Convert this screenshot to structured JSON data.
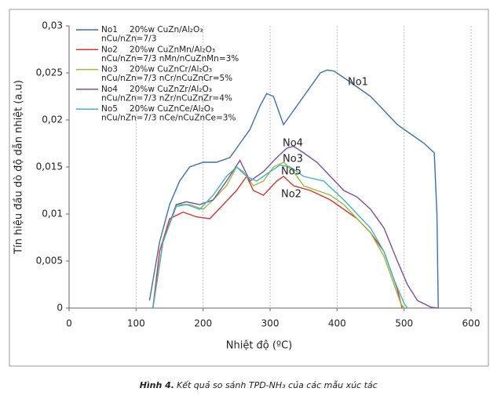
{
  "chart_data": {
    "type": "line",
    "ylabel": "Tín hiệu đầu dò độ dẫn nhiệt (a.u)",
    "xlabel": "Nhiệt độ   (ºC)",
    "figure_label": "Hình 4.",
    "caption": "Kết quả so sánh TPD-NH₃ của các mẫu xúc tác",
    "xlim": [
      0,
      600
    ],
    "xticks": [
      0,
      100,
      200,
      300,
      400,
      500,
      600
    ],
    "ylim": [
      0,
      0.03
    ],
    "yticks": [
      0,
      {
        "value": 0.005,
        "label": "0,005"
      },
      {
        "value": 0.01,
        "label": "0,01"
      },
      {
        "value": 0.015,
        "label": "0,015"
      },
      {
        "value": 0.02,
        "label": "0,02"
      },
      {
        "value": 0.025,
        "label": "0,025"
      },
      {
        "value": 0.03,
        "label": "0,03"
      }
    ],
    "grid": true,
    "legend": "upper left",
    "annotations": [
      "No1",
      "No4",
      "No3",
      "No5",
      "No2"
    ],
    "series": [
      {
        "name": "No1",
        "description": [
          "20%w CuZn/Al₂O₃",
          "nCu/nZn=7/3"
        ],
        "color": "#3c6fb0",
        "x": [
          120,
          135,
          150,
          165,
          180,
          200,
          220,
          240,
          255,
          270,
          285,
          295,
          305,
          315,
          320,
          330,
          345,
          360,
          375,
          385,
          395,
          410,
          430,
          450,
          470,
          490,
          510,
          530,
          545,
          549,
          551
        ],
        "values": [
          0.0008,
          0.007,
          0.011,
          0.0135,
          0.015,
          0.0155,
          0.0155,
          0.016,
          0.0175,
          0.019,
          0.0215,
          0.0228,
          0.0225,
          0.0205,
          0.0195,
          0.0205,
          0.022,
          0.0235,
          0.025,
          0.0253,
          0.0252,
          0.0245,
          0.0235,
          0.0225,
          0.021,
          0.0195,
          0.0185,
          0.0175,
          0.0165,
          0.01,
          0
        ]
      },
      {
        "name": "No2",
        "description": [
          "20%w CuZnMn/Al₂O₃",
          "nCu/nZn=7/3 nMn/nCuZnMn=3%"
        ],
        "color": "#d9342b",
        "x": [
          125,
          135,
          150,
          170,
          190,
          210,
          230,
          250,
          265,
          275,
          290,
          310,
          320,
          335,
          360,
          390,
          410,
          430,
          450,
          470,
          480,
          490,
          497
        ],
        "values": [
          0,
          0.006,
          0.0095,
          0.0102,
          0.0097,
          0.0095,
          0.011,
          0.0125,
          0.014,
          0.0125,
          0.012,
          0.0135,
          0.014,
          0.013,
          0.0125,
          0.0115,
          0.0105,
          0.0095,
          0.008,
          0.006,
          0.004,
          0.002,
          0
        ]
      },
      {
        "name": "No3",
        "description": [
          "20%w CuZnCr/Al₂O₃",
          "nCu/nZn=7/3 nCr/nCuZnCr=5%"
        ],
        "color": "#9bbb3a",
        "x": [
          125,
          140,
          160,
          180,
          200,
          215,
          235,
          250,
          260,
          275,
          290,
          305,
          320,
          335,
          350,
          370,
          390,
          410,
          430,
          450,
          470,
          485,
          495,
          500
        ],
        "values": [
          0,
          0.007,
          0.011,
          0.011,
          0.0105,
          0.0115,
          0.013,
          0.015,
          0.0145,
          0.013,
          0.0135,
          0.015,
          0.0155,
          0.0145,
          0.013,
          0.0125,
          0.012,
          0.011,
          0.0095,
          0.008,
          0.0055,
          0.0025,
          0.0005,
          0
        ]
      },
      {
        "name": "No4",
        "description": [
          "20%w CuZnZr/Al₂O₃",
          "nCu/nZn=7/3 nZr/nCuZnZr=4%"
        ],
        "color": "#7b4f9e",
        "x": [
          125,
          140,
          160,
          175,
          195,
          215,
          235,
          255,
          270,
          290,
          310,
          325,
          335,
          350,
          370,
          390,
          410,
          430,
          450,
          470,
          490,
          505,
          520,
          540,
          550
        ],
        "values": [
          0,
          0.007,
          0.011,
          0.0113,
          0.011,
          0.0115,
          0.0135,
          0.0157,
          0.0135,
          0.0145,
          0.016,
          0.017,
          0.0172,
          0.0165,
          0.0155,
          0.014,
          0.0125,
          0.0118,
          0.0105,
          0.0085,
          0.005,
          0.0025,
          0.0008,
          0.0001,
          0
        ]
      },
      {
        "name": "No5",
        "description": [
          "20%w CuZnCe/Al₂O₃",
          "nCu/nZn=7/3 nCe/nCuZnCe=3%"
        ],
        "color": "#3eb5c8",
        "x": [
          125,
          140,
          160,
          175,
          195,
          215,
          235,
          250,
          265,
          280,
          300,
          315,
          330,
          350,
          380,
          410,
          430,
          450,
          470,
          485,
          500,
          505
        ],
        "values": [
          0,
          0.007,
          0.0108,
          0.011,
          0.0105,
          0.012,
          0.014,
          0.015,
          0.014,
          0.0135,
          0.0145,
          0.0152,
          0.015,
          0.014,
          0.0135,
          0.0115,
          0.01,
          0.0085,
          0.006,
          0.003,
          0.0005,
          0
        ]
      }
    ]
  }
}
